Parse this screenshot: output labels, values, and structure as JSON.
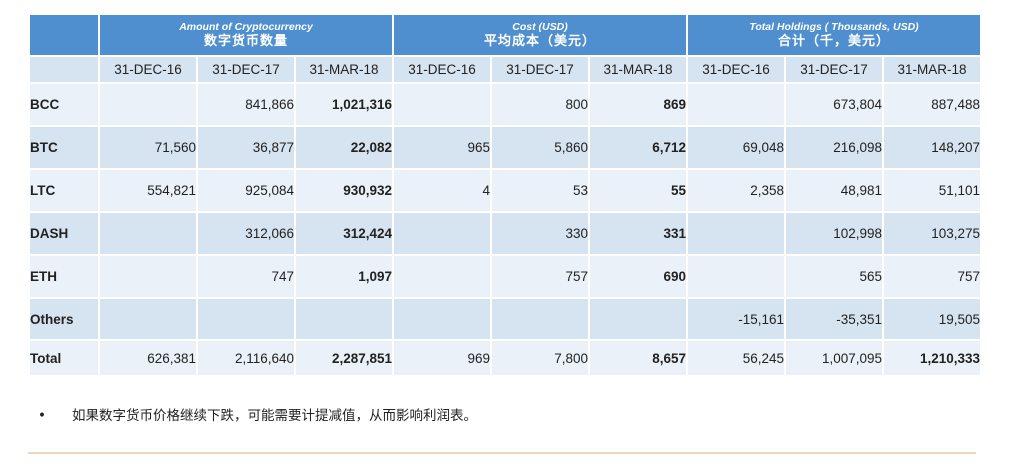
{
  "table": {
    "groups": [
      {
        "en": "Amount of Cryptocurrency",
        "zh": "数字货币数量"
      },
      {
        "en": "Cost (USD)",
        "zh": "平均成本（美元）"
      },
      {
        "en": "Total Holdings ( Thousands, USD)",
        "zh": "合计（千，美元）"
      }
    ],
    "dates": [
      "31-DEC-16",
      "31-DEC-17",
      "31-MAR-18",
      "31-DEC-16",
      "31-DEC-17",
      "31-MAR-18",
      "31-DEC-16",
      "31-DEC-17",
      "31-MAR-18"
    ],
    "rows": [
      {
        "label": "BCC",
        "values": [
          "",
          "841,866",
          "1,021,316",
          "",
          "800",
          "869",
          "",
          "673,804",
          "887,488"
        ]
      },
      {
        "label": "BTC",
        "values": [
          "71,560",
          "36,877",
          "22,082",
          "965",
          "5,860",
          "6,712",
          "69,048",
          "216,098",
          "148,207"
        ]
      },
      {
        "label": "LTC",
        "values": [
          "554,821",
          "925,084",
          "930,932",
          "4",
          "53",
          "55",
          "2,358",
          "48,981",
          "51,101"
        ]
      },
      {
        "label": "DASH",
        "values": [
          "",
          "312,066",
          "312,424",
          "",
          "330",
          "331",
          "",
          "102,998",
          "103,275"
        ]
      },
      {
        "label": "ETH",
        "values": [
          "",
          "747",
          "1,097",
          "",
          "757",
          "690",
          "",
          "565",
          "757"
        ]
      },
      {
        "label": "Others",
        "values": [
          "",
          "",
          "",
          "",
          "",
          "",
          "-15,161",
          "-35,351",
          "19,505"
        ]
      },
      {
        "label": "Total",
        "values": [
          "626,381",
          "2,116,640",
          "2,287,851",
          "969",
          "7,800",
          "8,657",
          "56,245",
          "1,007,095",
          "1,210,333"
        ]
      }
    ]
  },
  "note": {
    "bullet": "•",
    "text": "如果数字货币价格继续下跌，可能需要计提减值，从而影响利润表。"
  },
  "colors": {
    "header_blue": "#4f8fcf",
    "row_blue": "#d6e3f1",
    "row_light": "#eaf1f8",
    "footer_rule": "#f0d8b0"
  }
}
